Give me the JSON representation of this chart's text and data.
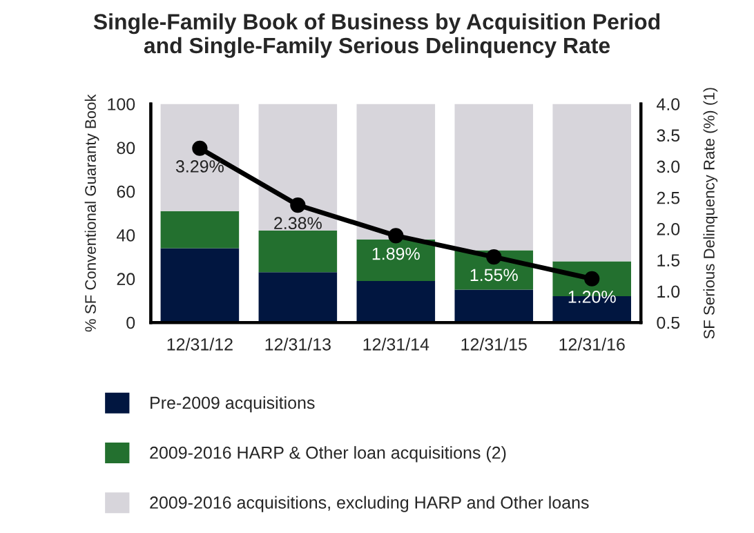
{
  "chart_data": {
    "type": "bar",
    "stacked": true,
    "title": "Single-Family Book of Business by Acquisition Period\nand Single-Family Serious Delinquency Rate",
    "categories": [
      "12/31/12",
      "12/31/13",
      "12/31/14",
      "12/31/15",
      "12/31/16"
    ],
    "series": [
      {
        "name": "Pre-2009 acquisitions",
        "color": "#011640",
        "values": [
          34,
          23,
          19,
          15,
          12
        ]
      },
      {
        "name": "2009-2016 HARP & Other loan acquisitions (2)",
        "color": "#23702f",
        "values": [
          17,
          19,
          19,
          18,
          16
        ]
      },
      {
        "name": "2009-2016 acquisitions, excluding HARP and Other loans",
        "color": "#d7d5db",
        "values": [
          49,
          58,
          62,
          67,
          72
        ]
      },
      {
        "type": "line",
        "axis": "y2",
        "color": "#000000",
        "marker": "circle",
        "values": [
          3.29,
          2.38,
          1.89,
          1.55,
          1.2
        ],
        "value_labels": [
          "3.29%",
          "2.38%",
          "1.89%",
          "1.55%",
          "1.20%"
        ]
      }
    ],
    "ylabel": "% SF Conventional Guaranty Book",
    "y2label": "SF Serious Delinquency Rate (%) (1)",
    "ylim": [
      0,
      100
    ],
    "yticks": [
      0,
      20,
      40,
      60,
      80,
      100
    ],
    "y2lim": [
      0.5,
      4.0
    ],
    "y2ticks": [
      {
        "value": 0.5,
        "label": "0.5"
      },
      {
        "value": 1.0,
        "label": "1.0"
      },
      {
        "value": 1.5,
        "label": "1.5"
      },
      {
        "value": 2.0,
        "label": "2.0"
      },
      {
        "value": 2.5,
        "label": "2.5"
      },
      {
        "value": 3.0,
        "label": "3.0"
      },
      {
        "value": 3.5,
        "label": "3.5"
      },
      {
        "value": 4.0,
        "label": "4.0"
      }
    ],
    "grid": false,
    "legend": "bottom"
  }
}
